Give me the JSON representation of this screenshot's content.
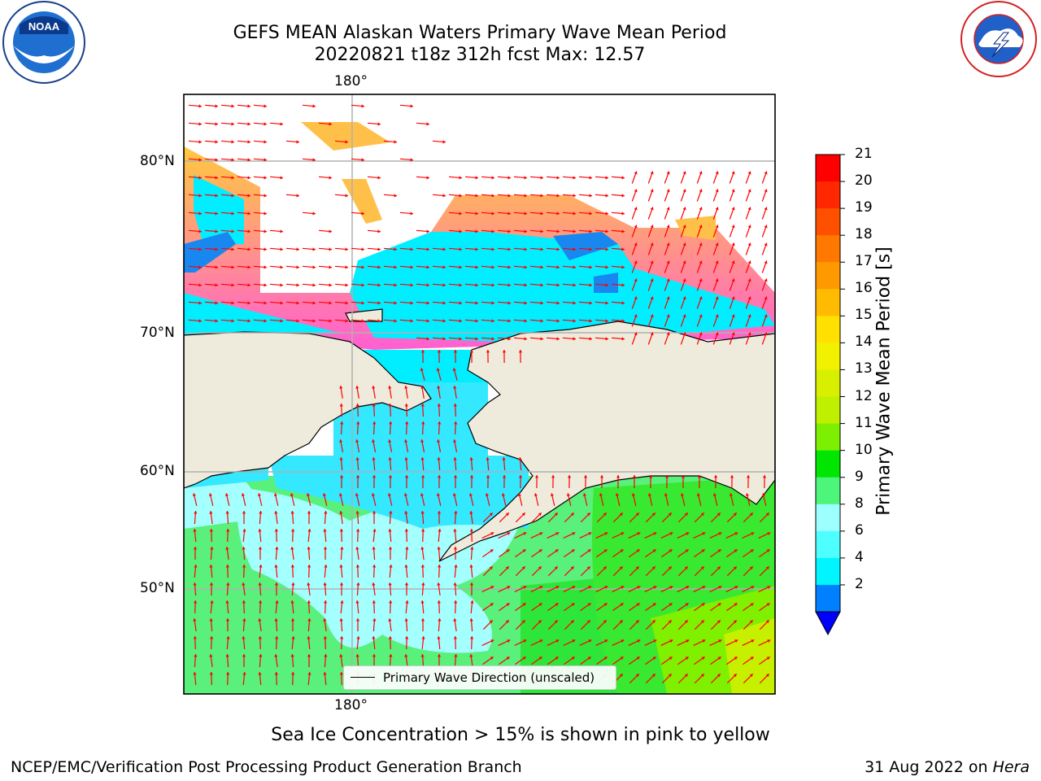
{
  "title": {
    "line1": "GEFS MEAN Alaskan Waters Primary Wave Mean Period",
    "line2": "20220821 t18z 312h fcst   Max: 12.57"
  },
  "logos": {
    "left": {
      "name": "noaa-logo",
      "text": "NOAA",
      "ring_text": "NATIONAL OCEANIC AND ATMOSPHERIC ADMINISTRATION · U.S. DEPARTMENT OF COMMERCE"
    },
    "right": {
      "name": "nws-logo",
      "ring_text": "NATIONAL WEATHER SERVICE"
    }
  },
  "map": {
    "lon_labels": {
      "top": "180°",
      "bottom": "180°"
    },
    "lat_labels": [
      "80°N",
      "70°N",
      "60°N",
      "50°N"
    ],
    "legend_label": "Primary Wave Direction (unscaled)",
    "colors": {
      "land": "#efebdc",
      "ocean_open": "#ffffff",
      "arrow": "#ff0000"
    }
  },
  "colorbar": {
    "label": "Primary Wave Mean Period [s]",
    "ticks": [
      "21",
      "20",
      "19",
      "18",
      "17",
      "16",
      "15",
      "14",
      "13",
      "12",
      "11",
      "10",
      "9",
      "8",
      "6",
      "4",
      "2"
    ],
    "colors": [
      "#ff0000",
      "#ff2800",
      "#ff5000",
      "#ff7800",
      "#ff9900",
      "#ffbb00",
      "#ffe000",
      "#f2f200",
      "#d8f000",
      "#bef000",
      "#7cf000",
      "#00e600",
      "#4df57a",
      "#9effff",
      "#4dffff",
      "#00f5ff",
      "#0080ff"
    ],
    "extend_color": "#0000ff"
  },
  "notes": {
    "sea_ice": "Sea Ice Concentration > 15% is shown in pink to yellow",
    "credit": "NCEP/EMC/Verification Post Processing Product Generation Branch",
    "date": "31 Aug 2022 on ",
    "host": "Hera"
  }
}
